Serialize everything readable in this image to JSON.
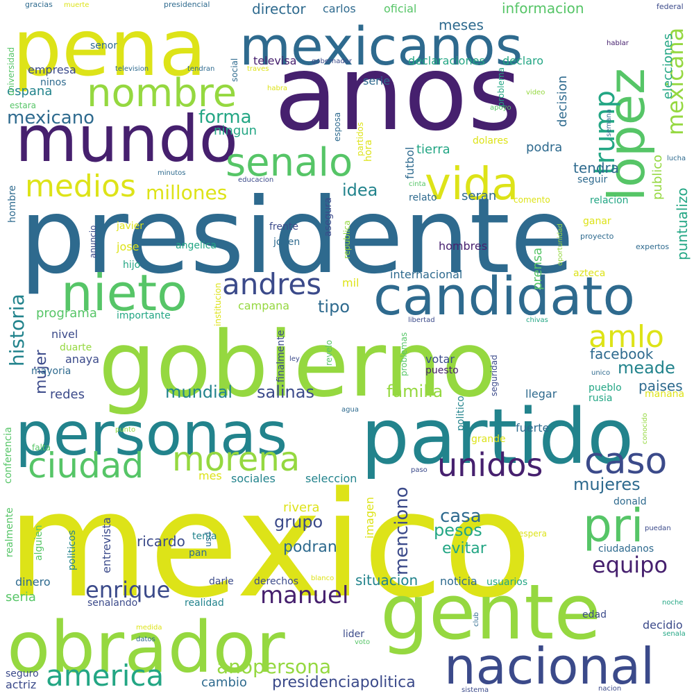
{
  "palette": {
    "dark_purple": "#46206e",
    "indigo": "#3b4a8a",
    "steel_blue": "#2e6a8e",
    "teal": "#22838c",
    "green_teal": "#23a684",
    "green": "#56c567",
    "light_green": "#95d840",
    "yellow": "#dde318"
  },
  "words": [
    {
      "text": "mexico",
      "color": "#dde318"
    },
    {
      "text": "presidente",
      "color": "#2e6a8e"
    },
    {
      "text": "gobierno",
      "color": "#95d840"
    },
    {
      "text": "anos",
      "color": "#46206e"
    },
    {
      "text": "partido",
      "color": "#22838c"
    },
    {
      "text": "gente",
      "color": "#95d840"
    },
    {
      "text": "obrador",
      "color": "#95d840"
    },
    {
      "text": "pena",
      "color": "#dde318"
    },
    {
      "text": "personas",
      "color": "#22838c"
    },
    {
      "text": "mexicanos",
      "color": "#2e6a8e"
    },
    {
      "text": "mundo",
      "color": "#46206e"
    },
    {
      "text": "candidato",
      "color": "#2e6a8e"
    },
    {
      "text": "nacional",
      "color": "#3b4a8a"
    },
    {
      "text": "lopez",
      "color": "#56c567"
    },
    {
      "text": "nieto",
      "color": "#56c567"
    },
    {
      "text": "nombre",
      "color": "#95d840"
    },
    {
      "text": "vida",
      "color": "#dde318"
    },
    {
      "text": "senalo",
      "color": "#56c567"
    },
    {
      "text": "morena",
      "color": "#95d840"
    },
    {
      "text": "ciudad",
      "color": "#56c567"
    },
    {
      "text": "pri",
      "color": "#56c567"
    },
    {
      "text": "caso",
      "color": "#3b4a8a"
    },
    {
      "text": "unidos",
      "color": "#46206e"
    },
    {
      "text": "amlo",
      "color": "#dde318"
    },
    {
      "text": "medios",
      "color": "#dde318"
    },
    {
      "text": "america",
      "color": "#23a684"
    },
    {
      "text": "andres",
      "color": "#3b4a8a"
    },
    {
      "text": "trump",
      "color": "#23a684"
    },
    {
      "text": "mexicana",
      "color": "#95d840"
    },
    {
      "text": "manuel",
      "color": "#46206e"
    },
    {
      "text": "enrique",
      "color": "#3b4a8a"
    },
    {
      "text": "equipo",
      "color": "#46206e"
    },
    {
      "text": "anopersona",
      "color": "#95d840"
    },
    {
      "text": "millones",
      "color": "#dde318"
    },
    {
      "text": "forma",
      "color": "#23a684"
    },
    {
      "text": "mexicano",
      "color": "#2e6a8e"
    },
    {
      "text": "historia",
      "color": "#22838c"
    },
    {
      "text": "menciono",
      "color": "#3b4a8a"
    },
    {
      "text": "mujeres",
      "color": "#2e6a8e"
    },
    {
      "text": "casa",
      "color": "#2e6a8e"
    },
    {
      "text": "pesos",
      "color": "#23a684"
    },
    {
      "text": "salinas",
      "color": "#3b4a8a"
    },
    {
      "text": "mundial",
      "color": "#22838c"
    },
    {
      "text": "familia",
      "color": "#95d840"
    },
    {
      "text": "grupo",
      "color": "#3b4a8a"
    },
    {
      "text": "mujer",
      "color": "#3b4a8a"
    },
    {
      "text": "tipo",
      "color": "#2e6a8e"
    },
    {
      "text": "idea",
      "color": "#22838c"
    },
    {
      "text": "meade",
      "color": "#22838c"
    },
    {
      "text": "presidenciapolitica",
      "color": "#3b4a8a"
    },
    {
      "text": "ricardo",
      "color": "#3b4a8a"
    },
    {
      "text": "evitar",
      "color": "#23a684"
    },
    {
      "text": "podran",
      "color": "#2e6a8e"
    },
    {
      "text": "situacion",
      "color": "#22838c"
    },
    {
      "text": "facebook",
      "color": "#2e6a8e"
    },
    {
      "text": "paises",
      "color": "#2e6a8e"
    },
    {
      "text": "tendra",
      "color": "#2e6a8e"
    },
    {
      "text": "informacion",
      "color": "#56c567"
    },
    {
      "text": "meses",
      "color": "#2e6a8e"
    },
    {
      "text": "director",
      "color": "#2e6a8e"
    },
    {
      "text": "prensa",
      "color": "#56c567"
    },
    {
      "text": "puntualizo",
      "color": "#23a684"
    },
    {
      "text": "publico",
      "color": "#95d840"
    },
    {
      "text": "elecciones",
      "color": "#23a684"
    },
    {
      "text": "decision",
      "color": "#2e6a8e"
    },
    {
      "text": "podra",
      "color": "#2e6a8e"
    },
    {
      "text": "seran",
      "color": "#2e6a8e"
    },
    {
      "text": "tierra",
      "color": "#23a684"
    },
    {
      "text": "futbol",
      "color": "#2e6a8e"
    },
    {
      "text": "ningun",
      "color": "#23a684"
    },
    {
      "text": "espana",
      "color": "#22838c"
    },
    {
      "text": "empresa",
      "color": "#3b4a8a"
    },
    {
      "text": "declaraciones",
      "color": "#23a684"
    },
    {
      "text": "declaro",
      "color": "#23a684"
    },
    {
      "text": "serie",
      "color": "#2e6a8e"
    },
    {
      "text": "televisa",
      "color": "#46206e"
    },
    {
      "text": "oficial",
      "color": "#56c567"
    },
    {
      "text": "carlos",
      "color": "#2e6a8e"
    },
    {
      "text": "programa",
      "color": "#56c567"
    },
    {
      "text": "campana",
      "color": "#95d840"
    },
    {
      "text": "mil",
      "color": "#dde318"
    },
    {
      "text": "internacional",
      "color": "#2e6a8e"
    },
    {
      "text": "importante",
      "color": "#23a684"
    },
    {
      "text": "nivel",
      "color": "#3b4a8a"
    },
    {
      "text": "anaya",
      "color": "#3b4a8a"
    },
    {
      "text": "duarte",
      "color": "#95d840"
    },
    {
      "text": "mayoria",
      "color": "#2e6a8e"
    },
    {
      "text": "redes",
      "color": "#3b4a8a"
    },
    {
      "text": "votar",
      "color": "#3b4a8a"
    },
    {
      "text": "puesto",
      "color": "#46206e"
    },
    {
      "text": "llegar",
      "color": "#2e6a8e"
    },
    {
      "text": "rusia",
      "color": "#23a684"
    },
    {
      "text": "pueblo",
      "color": "#23a684"
    },
    {
      "text": "manana",
      "color": "#dde318"
    },
    {
      "text": "fuerte",
      "color": "#2e6a8e"
    },
    {
      "text": "grande",
      "color": "#dde318"
    },
    {
      "text": "donald",
      "color": "#2e6a8e"
    },
    {
      "text": "ciudadanos",
      "color": "#2e6a8e"
    },
    {
      "text": "edad",
      "color": "#3b4a8a"
    },
    {
      "text": "decidio",
      "color": "#3b4a8a"
    },
    {
      "text": "noticia",
      "color": "#2e6a8e"
    },
    {
      "text": "usuarios",
      "color": "#23a684"
    },
    {
      "text": "derechos",
      "color": "#3b4a8a"
    },
    {
      "text": "darle",
      "color": "#3b4a8a"
    },
    {
      "text": "realidad",
      "color": "#22838c"
    },
    {
      "text": "senalando",
      "color": "#3b4a8a"
    },
    {
      "text": "dinero",
      "color": "#2e6a8e"
    },
    {
      "text": "seria",
      "color": "#56c567"
    },
    {
      "text": "politicos",
      "color": "#22838c"
    },
    {
      "text": "alguien",
      "color": "#56c567"
    },
    {
      "text": "realmente",
      "color": "#56c567"
    },
    {
      "text": "entrevista",
      "color": "#3b4a8a"
    },
    {
      "text": "pan",
      "color": "#2e6a8e"
    },
    {
      "text": "usd",
      "color": "#2e6a8e"
    },
    {
      "text": "tenia",
      "color": "#22838c"
    },
    {
      "text": "rivera",
      "color": "#dde318"
    },
    {
      "text": "imagen",
      "color": "#dde318"
    },
    {
      "text": "sociales",
      "color": "#22838c"
    },
    {
      "text": "seleccion",
      "color": "#22838c"
    },
    {
      "text": "mes",
      "color": "#dde318"
    },
    {
      "text": "conferencia",
      "color": "#56c567"
    },
    {
      "text": "falta",
      "color": "#56c567"
    },
    {
      "text": "punto",
      "color": "#95d840"
    },
    {
      "text": "finalmente",
      "color": "#3b4a8a"
    },
    {
      "text": "revelo",
      "color": "#56c567"
    },
    {
      "text": "problemas",
      "color": "#56c567"
    },
    {
      "text": "politico",
      "color": "#22838c"
    },
    {
      "text": "seguridad",
      "color": "#3b4a8a"
    },
    {
      "text": "hombre",
      "color": "#2e6a8e"
    },
    {
      "text": "anuncio",
      "color": "#3b4a8a"
    },
    {
      "text": "javier",
      "color": "#dde318"
    },
    {
      "text": "jose",
      "color": "#dde318"
    },
    {
      "text": "hijo",
      "color": "#23a684"
    },
    {
      "text": "angelica",
      "color": "#23a684"
    },
    {
      "text": "frente",
      "color": "#3b4a8a"
    },
    {
      "text": "joven",
      "color": "#2e6a8e"
    },
    {
      "text": "hombres",
      "color": "#46206e"
    },
    {
      "text": "asegura",
      "color": "#3b4a8a"
    },
    {
      "text": "republica",
      "color": "#95d840"
    },
    {
      "text": "institucion",
      "color": "#dde318"
    },
    {
      "text": "relato",
      "color": "#2e6a8e"
    },
    {
      "text": "comento",
      "color": "#dde318"
    },
    {
      "text": "relacion",
      "color": "#23a684"
    },
    {
      "text": "ganar",
      "color": "#dde318"
    },
    {
      "text": "proyecto",
      "color": "#2e6a8e"
    },
    {
      "text": "expertos",
      "color": "#2e6a8e"
    },
    {
      "text": "azteca",
      "color": "#dde318"
    },
    {
      "text": "oportunidad",
      "color": "#95d840"
    },
    {
      "text": "dolares",
      "color": "#dde318"
    },
    {
      "text": "hora",
      "color": "#dde318"
    },
    {
      "text": "partidos",
      "color": "#dde318"
    },
    {
      "text": "esposa",
      "color": "#2e6a8e"
    },
    {
      "text": "problema",
      "color": "#23a684"
    },
    {
      "text": "apoyo",
      "color": "#56c567"
    },
    {
      "text": "video",
      "color": "#95d840"
    },
    {
      "text": "semana",
      "color": "#2e6a8e"
    },
    {
      "text": "lucha",
      "color": "#2e6a8e"
    },
    {
      "text": "seguir",
      "color": "#2e6a8e"
    },
    {
      "text": "cinta",
      "color": "#56c567"
    },
    {
      "text": "minutos",
      "color": "#2e6a8e"
    },
    {
      "text": "educacion",
      "color": "#3b4a8a"
    },
    {
      "text": "habra",
      "color": "#dde318"
    },
    {
      "text": "traves",
      "color": "#dde318"
    },
    {
      "text": "gobernador",
      "color": "#3b4a8a"
    },
    {
      "text": "tendran",
      "color": "#2e6a8e"
    },
    {
      "text": "television",
      "color": "#2e6a8e"
    },
    {
      "text": "social",
      "color": "#2e6a8e"
    },
    {
      "text": "senor",
      "color": "#2e6a8e"
    },
    {
      "text": "ninos",
      "color": "#2e6a8e"
    },
    {
      "text": "estara",
      "color": "#56c567"
    },
    {
      "text": "universidad",
      "color": "#56c567"
    },
    {
      "text": "gracias",
      "color": "#2e6a8e"
    },
    {
      "text": "muerte",
      "color": "#dde318"
    },
    {
      "text": "presidencial",
      "color": "#2e6a8e"
    },
    {
      "text": "hablar",
      "color": "#46206e"
    },
    {
      "text": "federal",
      "color": "#3b4a8a"
    },
    {
      "text": "libertad",
      "color": "#3b4a8a"
    },
    {
      "text": "chivas",
      "color": "#23a684"
    },
    {
      "text": "ley",
      "color": "#3b4a8a"
    },
    {
      "text": "unico",
      "color": "#2e6a8e"
    },
    {
      "text": "conocido",
      "color": "#95d840"
    },
    {
      "text": "agua",
      "color": "#2e6a8e"
    },
    {
      "text": "paso",
      "color": "#3b4a8a"
    },
    {
      "text": "espera",
      "color": "#dde318"
    },
    {
      "text": "puedan",
      "color": "#3b4a8a"
    },
    {
      "text": "blanco",
      "color": "#dde318"
    },
    {
      "text": "noche",
      "color": "#23a684"
    },
    {
      "text": "senala",
      "color": "#23a684"
    },
    {
      "text": "medida",
      "color": "#dde318"
    },
    {
      "text": "datos",
      "color": "#2e6a8e"
    },
    {
      "text": "club",
      "color": "#2e6a8e"
    },
    {
      "text": "voto",
      "color": "#56c567"
    },
    {
      "text": "lider",
      "color": "#3b4a8a"
    },
    {
      "text": "sistema",
      "color": "#3b4a8a"
    },
    {
      "text": "nacion",
      "color": "#3b4a8a"
    },
    {
      "text": "seguro",
      "color": "#3b4a8a"
    },
    {
      "text": "actriz",
      "color": "#3b4a8a"
    },
    {
      "text": "cambio",
      "color": "#2e6a8e"
    }
  ]
}
